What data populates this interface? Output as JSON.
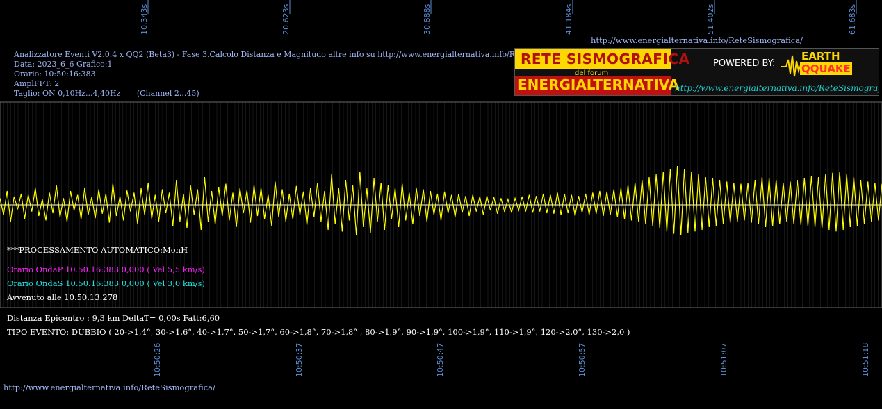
{
  "header": {
    "title_line": "Analizzatore Eventi V2.0.4 x QQ2 (Beta3) - Fase 3.Calcolo Distanza e Magnitudo altre info su http://www.energialternativa.info/ReteSismografica/",
    "date_line": "Data: 2023_6_6 Grafico:1",
    "time_line": "Orario: 10:50:16:383",
    "ampl_line": "AmplFFT: 2",
    "filter_line": "Taglio: ON 0,10Hz...4,40Hz",
    "channel_line": "(Channel 2...45)",
    "top_url": "http://www.energialternativa.info/ReteSismografica/"
  },
  "banner": {
    "title1": "RETE SISMOGRAFICA",
    "subtitle": "del forum",
    "title2": "ENERGIALTERNATIVA",
    "powered_by": "POWERED BY:",
    "brand_top": "EARTH",
    "brand_bottom": "QQUAKE",
    "url": "http://www.energialternativa.info/ReteSismografica"
  },
  "processing": {
    "label": "***PROCESSAMENTO AUTOMATICO:MonH",
    "p_wave": "Orario OndaP 10.50.16:383  0,000 ( Vel 5,5 km/s)",
    "s_wave": "Orario OndaS 10.50.16:383  0,000 ( Vel 3,0 km/s)",
    "occurred": "Avvenuto alle 10.50.13:278"
  },
  "result": {
    "distance": "Distanza Epicentro : 9,3 km DeltaT= 0,00s  Fatt:6,60",
    "event_type": "TIPO EVENTO: DUBBIO ( 20->1,4°, 30->1,6°, 40->1,7°, 50->1,7°, 60->1,8°, 70->1,8° , 80->1,9°, 90->1,9°, 100->1,9°, 110->1,9°, 120->2,0°, 130->2,0 )"
  },
  "footer_url": "http://www.energialternativa.info/ReteSismografica/",
  "colors": {
    "background": "#000000",
    "trace": "#ffff00",
    "baseline": "#ffffff",
    "grid": "#5a5a5a",
    "axis_label": "#5b8fd6",
    "p_wave": "#ff22ff",
    "s_wave": "#22e0e0",
    "banner_yellow": "#ffd700",
    "banner_red": "#d01010"
  },
  "chart_data": {
    "type": "line",
    "top_axis_ticks": [
      "10,343s",
      "20,623s",
      "30,888s",
      "41,184s",
      "51,402s",
      "61,683s"
    ],
    "bottom_axis_ticks": [
      "10:50:26",
      "10:50:37",
      "10:50:47",
      "10:50:57",
      "10:51:07",
      "10:51:18"
    ],
    "baseline": 0,
    "ylim": [
      -100,
      100
    ],
    "series": [
      {
        "values": [
          12,
          -18,
          25,
          -30,
          15,
          -8,
          20,
          -25,
          18,
          -12,
          30,
          -20,
          10,
          -28,
          22,
          -15,
          35,
          -22,
          12,
          -30,
          25,
          -10,
          18,
          -26,
          30,
          -18,
          14,
          -24,
          28,
          -16,
          20,
          -32,
          38,
          -20,
          15,
          -28,
          26,
          -12,
          22,
          -35,
          30,
          -18,
          40,
          -25,
          18,
          -30,
          28,
          -15,
          22,
          -38,
          45,
          -30,
          20,
          -42,
          35,
          -18,
          28,
          -45,
          50,
          -30,
          25,
          -35,
          32,
          -20,
          38,
          -28,
          22,
          -40,
          30,
          -15,
          26,
          -32,
          35,
          -20,
          30,
          -25,
          18,
          -38,
          42,
          -22,
          28,
          -30,
          20,
          -26,
          34,
          -18,
          24,
          -36,
          30,
          -22,
          40,
          -30,
          25,
          -45,
          55,
          -35,
          30,
          -48,
          45,
          -28,
          35,
          -55,
          60,
          -40,
          30,
          -50,
          48,
          -30,
          40,
          -45,
          35,
          -25,
          30,
          -40,
          38,
          -28,
          22,
          -35,
          30,
          -20,
          28,
          -30,
          25,
          -18,
          20,
          -28,
          24,
          -15,
          18,
          -22,
          20,
          -14,
          16,
          -20,
          18,
          -12,
          15,
          -18,
          16,
          -10,
          14,
          -16,
          12,
          -12,
          10,
          -14,
          12,
          -10,
          15,
          -12,
          18,
          -14,
          16,
          -12,
          20,
          -15,
          18,
          -16,
          22,
          -18,
          20,
          -15,
          18,
          -20,
          16,
          -14,
          20,
          -18,
          22,
          -16,
          25,
          -20,
          24,
          -18,
          28,
          -22,
          30,
          -25,
          35,
          -28,
          40,
          -30,
          45,
          -35,
          50,
          -38,
          55,
          -42,
          60,
          -48,
          65,
          -52,
          70,
          -55,
          65,
          -50,
          60,
          -48,
          55,
          -45,
          50,
          -40,
          48,
          -38,
          45,
          -35,
          42,
          -32,
          40,
          -30,
          38,
          -28,
          40,
          -32,
          45,
          -35,
          50,
          -40,
          48,
          -38,
          45,
          -35,
          40,
          -30,
          42,
          -34,
          45,
          -36,
          48,
          -38,
          52,
          -40,
          50,
          -42,
          55,
          -45,
          58,
          -48,
          60,
          -45,
          55,
          -40,
          50,
          -38,
          45,
          -35,
          42,
          -30,
          40,
          -28,
          38
        ]
      }
    ]
  }
}
